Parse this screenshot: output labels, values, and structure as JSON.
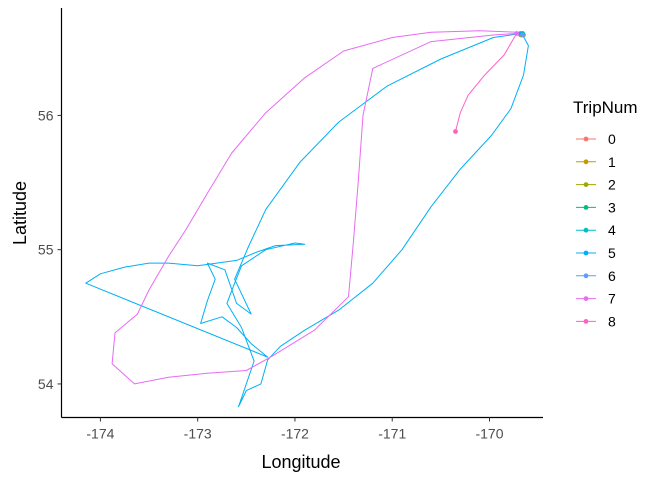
{
  "chart_data": {
    "type": "line",
    "title": "",
    "xlabel": "Longitude",
    "ylabel": "Latitude",
    "xlim": [
      -174.4,
      -169.45
    ],
    "ylim": [
      53.75,
      56.8
    ],
    "xticks": [
      -174,
      -173,
      -172,
      -171,
      -170
    ],
    "yticks": [
      54,
      55,
      56
    ],
    "grid": false,
    "legend": {
      "title": "TripNum",
      "position": "right"
    },
    "series": [
      {
        "name": "0",
        "color": "#F8766D",
        "points": [
          [
            -169.67,
            56.6
          ],
          [
            -169.65,
            56.61
          ],
          [
            -169.68,
            56.6
          ]
        ]
      },
      {
        "name": "1",
        "color": "#C49A00",
        "points": [
          [
            -169.66,
            56.6
          ],
          [
            -169.65,
            56.6
          ]
        ]
      },
      {
        "name": "2",
        "color": "#A3A500",
        "points": [
          [
            -169.66,
            56.61
          ],
          [
            -169.67,
            56.6
          ]
        ]
      },
      {
        "name": "3",
        "color": "#00BF7D",
        "points": [
          [
            -169.65,
            56.6
          ],
          [
            -169.66,
            56.61
          ]
        ]
      },
      {
        "name": "4",
        "color": "#00BFC4",
        "points": [
          [
            -169.67,
            56.61
          ],
          [
            -169.66,
            56.6
          ]
        ]
      },
      {
        "name": "5",
        "color": "#00B0F6",
        "points": [
          [
            -169.66,
            56.6
          ],
          [
            -169.6,
            56.52
          ],
          [
            -169.65,
            56.3
          ],
          [
            -169.78,
            56.05
          ],
          [
            -169.98,
            55.85
          ],
          [
            -170.3,
            55.6
          ],
          [
            -170.6,
            55.32
          ],
          [
            -170.9,
            55.0
          ],
          [
            -171.2,
            54.75
          ],
          [
            -171.55,
            54.55
          ],
          [
            -171.9,
            54.4
          ],
          [
            -172.15,
            54.28
          ],
          [
            -172.28,
            54.18
          ],
          [
            -172.35,
            54.0
          ],
          [
            -172.5,
            53.95
          ],
          [
            -172.58,
            53.83
          ],
          [
            -172.42,
            54.17
          ],
          [
            -172.55,
            54.42
          ],
          [
            -172.7,
            54.6
          ],
          [
            -172.62,
            54.75
          ],
          [
            -172.55,
            54.88
          ],
          [
            -172.3,
            55.0
          ],
          [
            -172.0,
            55.05
          ],
          [
            -171.9,
            55.04
          ],
          [
            -172.2,
            55.03
          ],
          [
            -172.4,
            54.98
          ],
          [
            -172.6,
            54.92
          ],
          [
            -173.0,
            54.88
          ],
          [
            -173.3,
            54.9
          ],
          [
            -173.5,
            54.9
          ],
          [
            -173.75,
            54.87
          ],
          [
            -174.0,
            54.82
          ],
          [
            -174.15,
            54.75
          ],
          [
            -172.28,
            54.2
          ],
          [
            -172.45,
            54.3
          ],
          [
            -172.6,
            54.42
          ],
          [
            -172.75,
            54.5
          ],
          [
            -172.97,
            54.45
          ],
          [
            -172.9,
            54.62
          ],
          [
            -172.82,
            54.78
          ],
          [
            -172.9,
            54.9
          ],
          [
            -172.72,
            54.85
          ],
          [
            -172.6,
            54.6
          ],
          [
            -172.45,
            54.52
          ],
          [
            -172.62,
            54.78
          ],
          [
            -172.48,
            55.02
          ],
          [
            -172.3,
            55.3
          ],
          [
            -171.95,
            55.65
          ],
          [
            -171.55,
            55.95
          ],
          [
            -171.05,
            56.22
          ],
          [
            -170.5,
            56.42
          ],
          [
            -169.96,
            56.58
          ],
          [
            -169.68,
            56.61
          ]
        ]
      },
      {
        "name": "6",
        "color": "#619CFF",
        "points": [
          [
            -169.68,
            56.6
          ],
          [
            -169.66,
            56.6
          ]
        ]
      },
      {
        "name": "7",
        "color": "#E76BF3",
        "points": [
          [
            -169.7,
            56.62
          ],
          [
            -170.1,
            56.63
          ],
          [
            -170.6,
            56.62
          ],
          [
            -171.0,
            56.58
          ],
          [
            -171.5,
            56.48
          ],
          [
            -171.9,
            56.28
          ],
          [
            -172.3,
            56.02
          ],
          [
            -172.65,
            55.72
          ],
          [
            -172.9,
            55.42
          ],
          [
            -173.12,
            55.15
          ],
          [
            -173.3,
            54.95
          ],
          [
            -173.5,
            54.7
          ],
          [
            -173.62,
            54.52
          ],
          [
            -173.85,
            54.38
          ],
          [
            -173.88,
            54.15
          ],
          [
            -173.65,
            54.0
          ],
          [
            -173.3,
            54.05
          ],
          [
            -172.9,
            54.08
          ],
          [
            -172.5,
            54.1
          ],
          [
            -172.25,
            54.2
          ],
          [
            -171.8,
            54.4
          ],
          [
            -171.45,
            54.65
          ],
          [
            -171.4,
            55.05
          ],
          [
            -171.35,
            55.5
          ],
          [
            -171.3,
            56.0
          ],
          [
            -171.2,
            56.35
          ],
          [
            -170.6,
            56.55
          ],
          [
            -169.95,
            56.6
          ],
          [
            -169.72,
            56.61
          ]
        ]
      },
      {
        "name": "8",
        "color": "#FF61C3",
        "points": [
          [
            -169.73,
            56.6
          ],
          [
            -169.85,
            56.45
          ],
          [
            -170.05,
            56.3
          ],
          [
            -170.22,
            56.15
          ],
          [
            -170.3,
            56.02
          ],
          [
            -170.35,
            55.88
          ]
        ]
      }
    ]
  }
}
